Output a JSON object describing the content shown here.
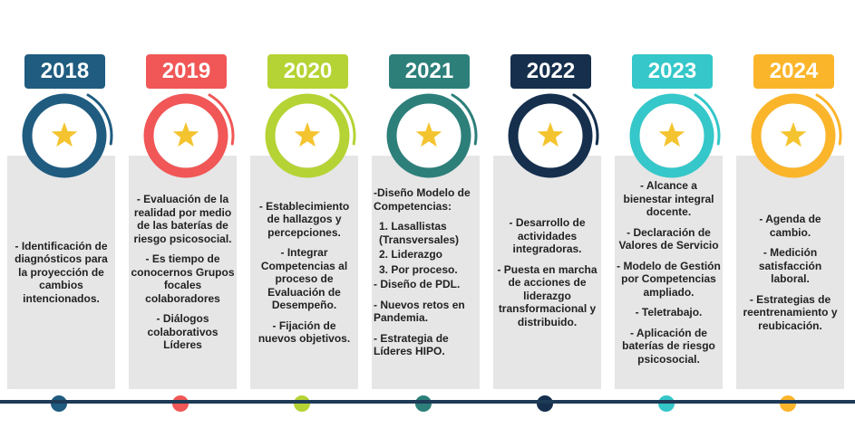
{
  "milestones": [
    {
      "year": "2018",
      "color": "#1f5c80",
      "text_lines": [
        "- Identificación de diagnósticos para la proyección de cambios intencionados."
      ]
    },
    {
      "year": "2019",
      "color": "#f05756",
      "text_lines": [
        "- Evaluación de la realidad por medio de las baterías de riesgo psicosocial.",
        "- Es tiempo de conocernos Grupos focales colaboradores",
        "- Diálogos colaborativos Líderes"
      ]
    },
    {
      "year": "2020",
      "color": "#b5d334",
      "text_lines": [
        "- Establecimiento de hallazgos y percepciones.",
        "- Integrar Competencias al proceso de Evaluación de Desempeño.",
        "- Fijación de nuevos objetivos."
      ]
    },
    {
      "year": "2021",
      "color": "#2d7f7a",
      "text_lines": [
        "-Diseño Modelo de Competencias:",
        "1. Lasallistas (Transversales)",
        "2. Liderazgo",
        "3. Por proceso.",
        "- Diseño de PDL.",
        "- Nuevos retos en Pandemia.",
        "- Estrategia de Líderes HIPO."
      ]
    },
    {
      "year": "2022",
      "color": "#152f4d",
      "text_lines": [
        "- Desarrollo de actividades integradoras.",
        "- Puesta en marcha de acciones de liderazgo transformacional y distribuido."
      ]
    },
    {
      "year": "2023",
      "color": "#35c7c9",
      "text_lines": [
        "- Alcance a bienestar integral docente.",
        "- Declaración de Valores de Servicio",
        "- Modelo de Gestión por Competencias ampliado.",
        "- Teletrabajo.",
        "- Aplicación de baterías de riesgo psicosocial."
      ]
    },
    {
      "year": "2024",
      "color": "#fbb52b",
      "text_lines": [
        "- Agenda de cambio.",
        "- Medición satisfacción laboral.",
        "- Estrategias de reentrenamiento y reubicación."
      ]
    }
  ],
  "star_color": "#f4c430",
  "timeline_color": "#1d3a56"
}
